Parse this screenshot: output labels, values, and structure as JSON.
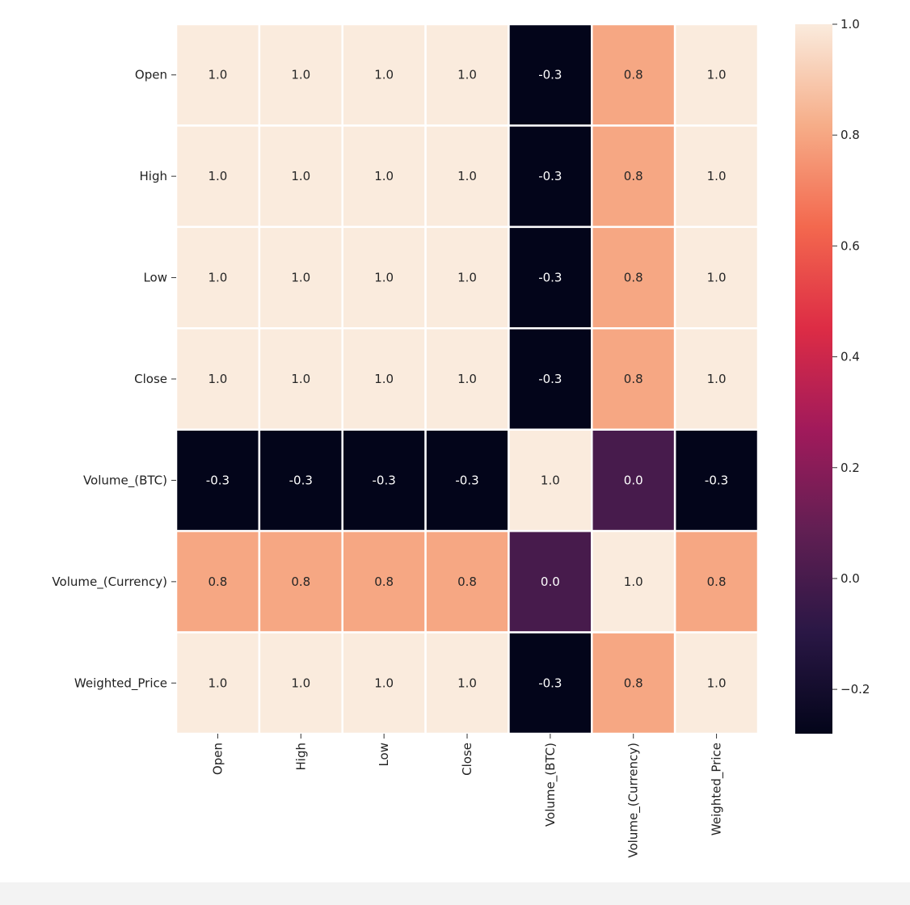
{
  "chart_data": {
    "type": "heatmap",
    "title": "",
    "xlabel": "",
    "ylabel": "",
    "rows": [
      "Open",
      "High",
      "Low",
      "Close",
      "Volume_(BTC)",
      "Volume_(Currency)",
      "Weighted_Price"
    ],
    "columns": [
      "Open",
      "High",
      "Low",
      "Close",
      "Volume_(BTC)",
      "Volume_(Currency)",
      "Weighted_Price"
    ],
    "values": [
      [
        1.0,
        1.0,
        1.0,
        1.0,
        -0.3,
        0.8,
        1.0
      ],
      [
        1.0,
        1.0,
        1.0,
        1.0,
        -0.3,
        0.8,
        1.0
      ],
      [
        1.0,
        1.0,
        1.0,
        1.0,
        -0.3,
        0.8,
        1.0
      ],
      [
        1.0,
        1.0,
        1.0,
        1.0,
        -0.3,
        0.8,
        1.0
      ],
      [
        -0.3,
        -0.3,
        -0.3,
        -0.3,
        1.0,
        0.0,
        -0.3
      ],
      [
        0.8,
        0.8,
        0.8,
        0.8,
        0.0,
        1.0,
        0.8
      ],
      [
        1.0,
        1.0,
        1.0,
        1.0,
        -0.3,
        0.8,
        1.0
      ]
    ],
    "annotations": [
      [
        "1.0",
        "1.0",
        "1.0",
        "1.0",
        "-0.3",
        "0.8",
        "1.0"
      ],
      [
        "1.0",
        "1.0",
        "1.0",
        "1.0",
        "-0.3",
        "0.8",
        "1.0"
      ],
      [
        "1.0",
        "1.0",
        "1.0",
        "1.0",
        "-0.3",
        "0.8",
        "1.0"
      ],
      [
        "1.0",
        "1.0",
        "1.0",
        "1.0",
        "-0.3",
        "0.8",
        "1.0"
      ],
      [
        "-0.3",
        "-0.3",
        "-0.3",
        "-0.3",
        "1.0",
        "0.0",
        "-0.3"
      ],
      [
        "0.8",
        "0.8",
        "0.8",
        "0.8",
        "0.0",
        "1.0",
        "0.8"
      ],
      [
        "1.0",
        "1.0",
        "1.0",
        "1.0",
        "-0.3",
        "0.8",
        "1.0"
      ]
    ],
    "colorbar": {
      "range": [
        -0.28,
        1.0
      ],
      "ticks": [
        1.0,
        0.8,
        0.6,
        0.4,
        0.2,
        0.0,
        -0.2
      ],
      "tick_labels": [
        "1.0",
        "0.8",
        "0.6",
        "0.4",
        "0.2",
        "0.0",
        "−0.2"
      ],
      "colormap": "rocket",
      "stops": [
        "#03051a",
        "#2a1745",
        "#611f53",
        "#a11a5b",
        "#dd2c45",
        "#f3684e",
        "#f6ad88",
        "#faebdd"
      ]
    },
    "grid_line_color": "#ffffff",
    "x_tick_rotation": "vertical"
  }
}
